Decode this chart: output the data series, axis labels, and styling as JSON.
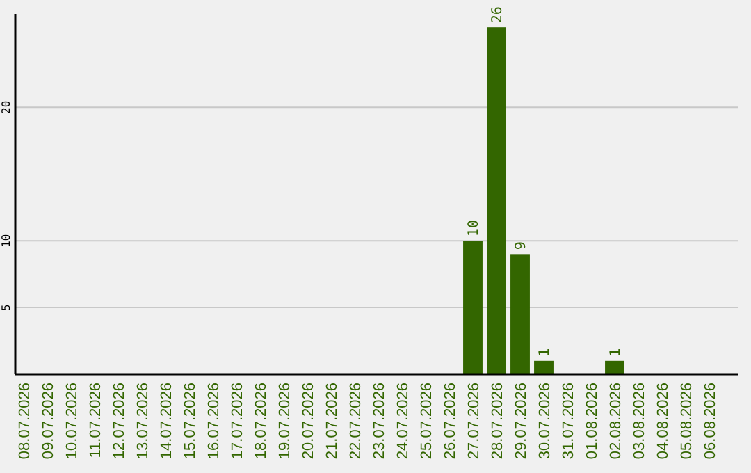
{
  "chart_data": {
    "type": "bar",
    "categories": [
      "08.07.2026",
      "09.07.2026",
      "10.07.2026",
      "11.07.2026",
      "12.07.2026",
      "13.07.2026",
      "14.07.2026",
      "15.07.2026",
      "16.07.2026",
      "17.07.2026",
      "18.07.2026",
      "19.07.2026",
      "20.07.2026",
      "21.07.2026",
      "22.07.2026",
      "23.07.2026",
      "24.07.2026",
      "25.07.2026",
      "26.07.2026",
      "27.07.2026",
      "28.07.2026",
      "29.07.2026",
      "30.07.2026",
      "31.07.2026",
      "01.08.2026",
      "02.08.2026",
      "03.08.2026",
      "04.08.2026",
      "05.08.2026",
      "06.08.2026"
    ],
    "values": [
      0,
      0,
      0,
      0,
      0,
      0,
      0,
      0,
      0,
      0,
      0,
      0,
      0,
      0,
      0,
      0,
      0,
      0,
      0,
      10,
      26,
      9,
      1,
      0,
      0,
      1,
      0,
      0,
      0,
      0
    ],
    "value_labels": [
      null,
      null,
      null,
      null,
      null,
      null,
      null,
      null,
      null,
      null,
      null,
      null,
      null,
      null,
      null,
      null,
      null,
      null,
      null,
      "10",
      "26",
      "9",
      "1",
      null,
      null,
      "1",
      null,
      null,
      null,
      null
    ],
    "color": "#336600",
    "ylim": [
      0,
      27
    ],
    "yticks": [
      5,
      10,
      20
    ],
    "grid": "y"
  }
}
